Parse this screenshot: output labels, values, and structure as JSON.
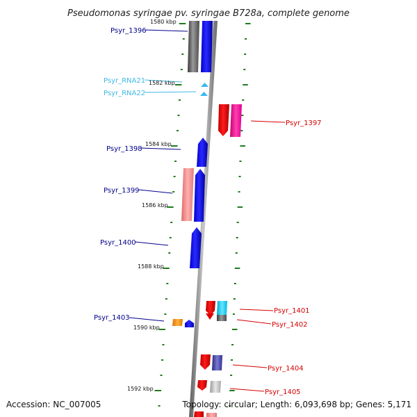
{
  "title": "Pseudomonas syringae pv. syringae B728a, complete genome",
  "accession": "Accession: NC_007005",
  "summary": "Topology: circular; Length: 6,093,698 bp; Genes: 5,171",
  "colors": {
    "title": "#222222",
    "backbone": "#8a8a8a",
    "ruler_ticks": "#1e7a1e",
    "forward_label": "#00008b",
    "reverse_label": "#d40000",
    "rna_label": "#3fb8e6",
    "cds_forward": "#1010ee",
    "cds_reverse": "#e50000"
  },
  "scale": {
    "units": "kbp",
    "ticks": [
      {
        "label": "1580 kbp",
        "position_kbp": 1580
      },
      {
        "label": "1582 kbp",
        "position_kbp": 1582
      },
      {
        "label": "1584 kbp",
        "position_kbp": 1584
      },
      {
        "label": "1586 kbp",
        "position_kbp": 1586
      },
      {
        "label": "1588 kbp",
        "position_kbp": 1588
      },
      {
        "label": "1590 kbp",
        "position_kbp": 1590
      },
      {
        "label": "1592 kbp",
        "position_kbp": 1592
      }
    ]
  },
  "features": [
    {
      "id": "Psyr_1396",
      "label": "Psyr_1396",
      "strand": "forward",
      "kind": "CDS"
    },
    {
      "id": "Psyr_RNA21",
      "label": "Psyr_RNA21",
      "strand": "forward",
      "kind": "RNA"
    },
    {
      "id": "Psyr_RNA22",
      "label": "Psyr_RNA22",
      "strand": "forward",
      "kind": "RNA"
    },
    {
      "id": "Psyr_1397",
      "label": "Psyr_1397",
      "strand": "reverse",
      "kind": "CDS"
    },
    {
      "id": "Psyr_1398",
      "label": "Psyr_1398",
      "strand": "forward",
      "kind": "CDS"
    },
    {
      "id": "Psyr_1399",
      "label": "Psyr_1399",
      "strand": "forward",
      "kind": "CDS"
    },
    {
      "id": "Psyr_1400",
      "label": "Psyr_1400",
      "strand": "forward",
      "kind": "CDS"
    },
    {
      "id": "Psyr_1401",
      "label": "Psyr_1401",
      "strand": "reverse",
      "kind": "CDS"
    },
    {
      "id": "Psyr_1402",
      "label": "Psyr_1402",
      "strand": "reverse",
      "kind": "CDS"
    },
    {
      "id": "Psyr_1403",
      "label": "Psyr_1403",
      "strand": "forward",
      "kind": "CDS"
    },
    {
      "id": "Psyr_1404",
      "label": "Psyr_1404",
      "strand": "reverse",
      "kind": "CDS"
    },
    {
      "id": "Psyr_1405",
      "label": "Psyr_1405",
      "strand": "reverse",
      "kind": "CDS"
    }
  ]
}
